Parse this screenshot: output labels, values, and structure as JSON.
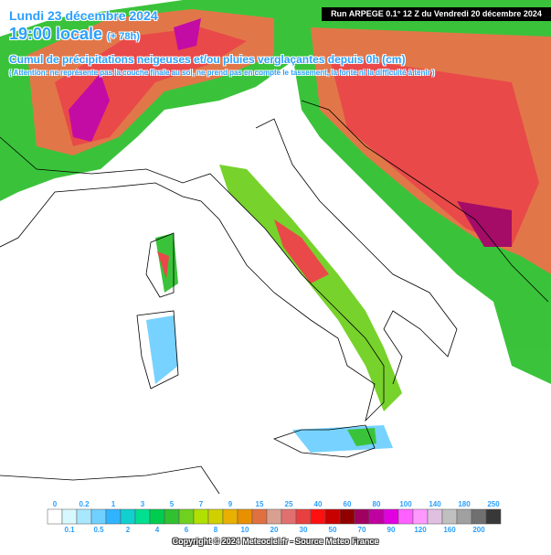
{
  "header": {
    "date": "Lundi 23 décembre 2024",
    "time": "19:00 locale",
    "lead": "(+ 78h)",
    "run": "Run ARPEGE 0.1° 12 Z du Vendredi 20 décembre 2024",
    "product": "Cumul de précipitations neigeuses et/ou pluies verglaçantes depuis 0h (cm)",
    "warning": "( Attention: ne représente pas la couche finale au sol, ne prend pas en compte le tassement, la fonte ni la difficulté à tenir )"
  },
  "legend": [
    {
      "label": "0",
      "color": "#ffffff"
    },
    {
      "label": "0.1",
      "color": "#d8f8ff"
    },
    {
      "label": "0.2",
      "color": "#a8e8ff"
    },
    {
      "label": "0.5",
      "color": "#70d0ff"
    },
    {
      "label": "1",
      "color": "#30b4ff"
    },
    {
      "label": "2",
      "color": "#10d0d0"
    },
    {
      "label": "3",
      "color": "#00e090"
    },
    {
      "label": "4",
      "color": "#00cc50"
    },
    {
      "label": "5",
      "color": "#30c030"
    },
    {
      "label": "6",
      "color": "#70d020"
    },
    {
      "label": "7",
      "color": "#b0e000"
    },
    {
      "label": "8",
      "color": "#d0d000"
    },
    {
      "label": "9",
      "color": "#e8b000"
    },
    {
      "label": "10",
      "color": "#e89000"
    },
    {
      "label": "15",
      "color": "#e07040"
    },
    {
      "label": "20",
      "color": "#d8a090"
    },
    {
      "label": "25",
      "color": "#e07070"
    },
    {
      "label": "30",
      "color": "#e84040"
    },
    {
      "label": "40",
      "color": "#ff1010"
    },
    {
      "label": "50",
      "color": "#c80000"
    },
    {
      "label": "60",
      "color": "#900000"
    },
    {
      "label": "70",
      "color": "#a00060"
    },
    {
      "label": "80",
      "color": "#c000a0"
    },
    {
      "label": "90",
      "color": "#e000e0"
    },
    {
      "label": "100",
      "color": "#ff60ff"
    },
    {
      "label": "120",
      "color": "#ff98ff"
    },
    {
      "label": "140",
      "color": "#e0c0e0"
    },
    {
      "label": "160",
      "color": "#c0c0c0"
    },
    {
      "label": "180",
      "color": "#a0a0a0"
    },
    {
      "label": "200",
      "color": "#707070"
    },
    {
      "label": "250",
      "color": "#383838"
    }
  ],
  "footer": {
    "copyright": "Copyright © 2024 Meteociel.fr - Source Meteo France"
  }
}
